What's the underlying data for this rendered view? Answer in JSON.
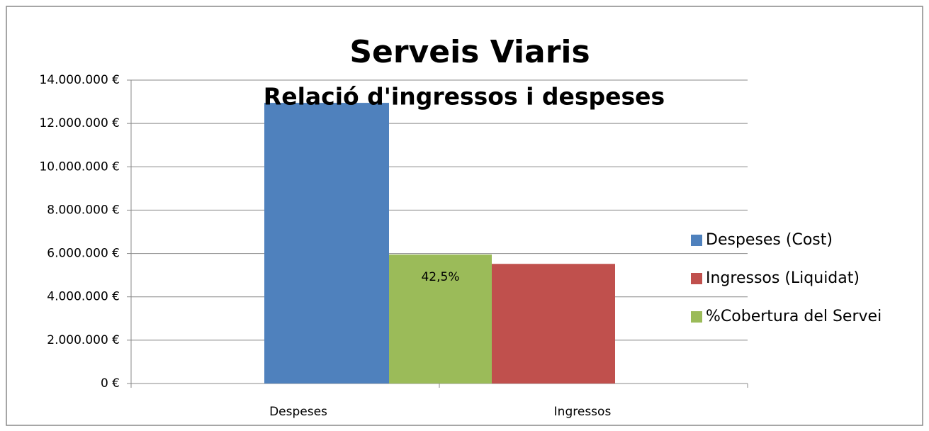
{
  "chart_data": {
    "type": "bar",
    "title": "Serveis Viaris",
    "subtitle": "Relació d'ingressos i despeses",
    "categories": [
      "Despeses",
      "Ingressos"
    ],
    "series": [
      {
        "name": "Despeses (Cost)",
        "color": "#4f81bd",
        "values": [
          12950000,
          null
        ]
      },
      {
        "name": "Ingressos (Liquidat)",
        "color": "#c0504d",
        "values": [
          null,
          5520000
        ]
      },
      {
        "name": "%Cobertura del Servei",
        "color": "#9bbb59",
        "values": [
          42.5,
          null
        ],
        "value_labels": [
          "42,5%",
          null
        ],
        "axis": "y2"
      }
    ],
    "ylim": [
      0,
      14000000
    ],
    "yticks": [
      {
        "value": 0,
        "label": "0 €"
      },
      {
        "value": 2000000,
        "label": "2.000.000 €"
      },
      {
        "value": 4000000,
        "label": "4.000.000 €"
      },
      {
        "value": 6000000,
        "label": "6.000.000 €"
      },
      {
        "value": 8000000,
        "label": "8.000.000 €"
      },
      {
        "value": 10000000,
        "label": "10.000.000 €"
      },
      {
        "value": 12000000,
        "label": "12.000.000 €"
      },
      {
        "value": 14000000,
        "label": "14.000.000 €"
      }
    ],
    "y2lim": [
      0,
      100
    ],
    "grid": true,
    "legend": "right"
  }
}
